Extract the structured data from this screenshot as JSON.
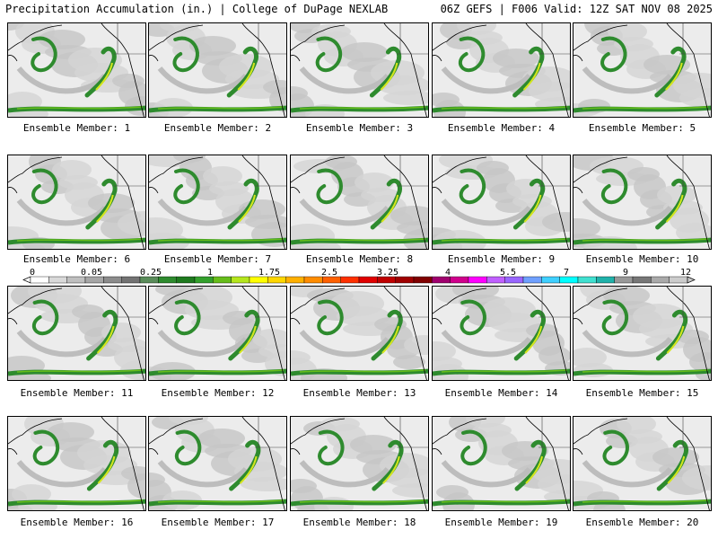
{
  "header": {
    "title_left": "Precipitation Accumulation (in.) | College of DuPage NEXLAB",
    "title_right": "06Z GEFS | F006 Valid: 12Z SAT NOV 08 2025"
  },
  "members": [
    "Ensemble Member: 1",
    "Ensemble Member: 2",
    "Ensemble Member: 3",
    "Ensemble Member: 4",
    "Ensemble Member: 5",
    "Ensemble Member: 6",
    "Ensemble Member: 7",
    "Ensemble Member: 8",
    "Ensemble Member: 9",
    "Ensemble Member: 10",
    "Ensemble Member: 11",
    "Ensemble Member: 12",
    "Ensemble Member: 13",
    "Ensemble Member: 14",
    "Ensemble Member: 15",
    "Ensemble Member: 16",
    "Ensemble Member: 17",
    "Ensemble Member: 18",
    "Ensemble Member: 19",
    "Ensemble Member: 20"
  ],
  "legend": {
    "tick_labels": [
      "0",
      "0.05",
      "0.25",
      "1",
      "1.75",
      "2.5",
      "3.25",
      "4",
      "5.5",
      "7",
      "9",
      "12"
    ],
    "colors": [
      "#ffffff",
      "#d9d9d9",
      "#bfbfbf",
      "#a6a6a6",
      "#8c8c8c",
      "#737373",
      "#5a8c5a",
      "#2e8b2e",
      "#1f7a1f",
      "#33a02c",
      "#66bd1a",
      "#b5e61d",
      "#ffff00",
      "#ffd700",
      "#ffb000",
      "#ff8c00",
      "#ff6000",
      "#ff3000",
      "#e00000",
      "#c00000",
      "#a00000",
      "#800000",
      "#a0006e",
      "#d0008c",
      "#ff00ff",
      "#c060ff",
      "#9966ff",
      "#6fa0ff",
      "#3fd0ff",
      "#00ffff",
      "#40e0d0",
      "#20b2aa",
      "#999999",
      "#777777",
      "#aaaaaa",
      "#cccccc"
    ]
  }
}
